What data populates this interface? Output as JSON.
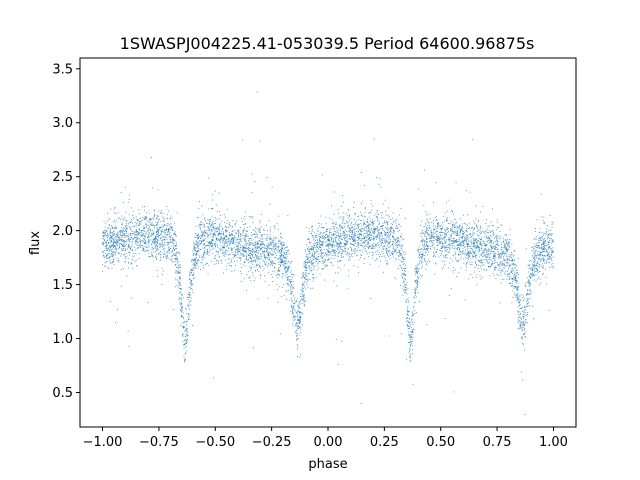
{
  "chart_data": {
    "type": "scatter",
    "title": "1SWASPJ004225.41-053039.5 Period 64600.96875s",
    "xlabel": "phase",
    "ylabel": "flux",
    "xlim": [
      -1.1,
      1.1
    ],
    "ylim": [
      0.18,
      3.6
    ],
    "x_ticks": [
      -1.0,
      -0.75,
      -0.5,
      -0.25,
      0.0,
      0.25,
      0.5,
      0.75,
      1.0
    ],
    "x_tick_labels": [
      "−1.00",
      "−0.75",
      "−0.50",
      "−0.25",
      "0.00",
      "0.25",
      "0.50",
      "0.75",
      "1.00"
    ],
    "y_ticks": [
      0.5,
      1.0,
      1.5,
      2.0,
      2.5,
      3.0,
      3.5
    ],
    "y_tick_labels": [
      "0.5",
      "1.0",
      "1.5",
      "2.0",
      "2.5",
      "3.0",
      "3.5"
    ],
    "grid": false,
    "marker_color": "#1f77b4",
    "series": [
      {
        "phase": [
          -1.0,
          -0.95,
          -0.9,
          -0.85,
          -0.8,
          -0.75,
          -0.7,
          -0.68,
          -0.66,
          -0.645,
          -0.635,
          -0.625,
          -0.61,
          -0.59,
          -0.57,
          -0.55,
          -0.5,
          -0.45,
          -0.4,
          -0.35,
          -0.3,
          -0.25,
          -0.2,
          -0.18,
          -0.16,
          -0.145,
          -0.135,
          -0.125,
          -0.11,
          -0.09,
          -0.07,
          -0.05,
          0.0,
          0.05,
          0.1,
          0.15,
          0.2,
          0.25,
          0.3,
          0.32,
          0.34,
          0.355,
          0.365,
          0.375,
          0.39,
          0.41,
          0.43,
          0.45,
          0.5,
          0.55,
          0.6,
          0.65,
          0.7,
          0.75,
          0.8,
          0.82,
          0.84,
          0.855,
          0.865,
          0.875,
          0.89,
          0.91,
          0.93,
          0.95,
          1.0
        ],
        "flux": [
          1.85,
          1.9,
          1.93,
          1.95,
          1.96,
          1.96,
          1.93,
          1.85,
          1.6,
          1.2,
          0.95,
          1.1,
          1.5,
          1.8,
          1.9,
          1.92,
          1.92,
          1.9,
          1.87,
          1.85,
          1.82,
          1.8,
          1.76,
          1.65,
          1.45,
          1.2,
          1.1,
          1.2,
          1.5,
          1.72,
          1.8,
          1.83,
          1.85,
          1.9,
          1.93,
          1.95,
          1.96,
          1.96,
          1.93,
          1.85,
          1.6,
          1.2,
          0.95,
          1.1,
          1.5,
          1.8,
          1.9,
          1.92,
          1.92,
          1.9,
          1.87,
          1.85,
          1.82,
          1.8,
          1.76,
          1.65,
          1.45,
          1.2,
          1.1,
          1.2,
          1.5,
          1.72,
          1.8,
          1.83,
          1.85
        ]
      }
    ]
  }
}
